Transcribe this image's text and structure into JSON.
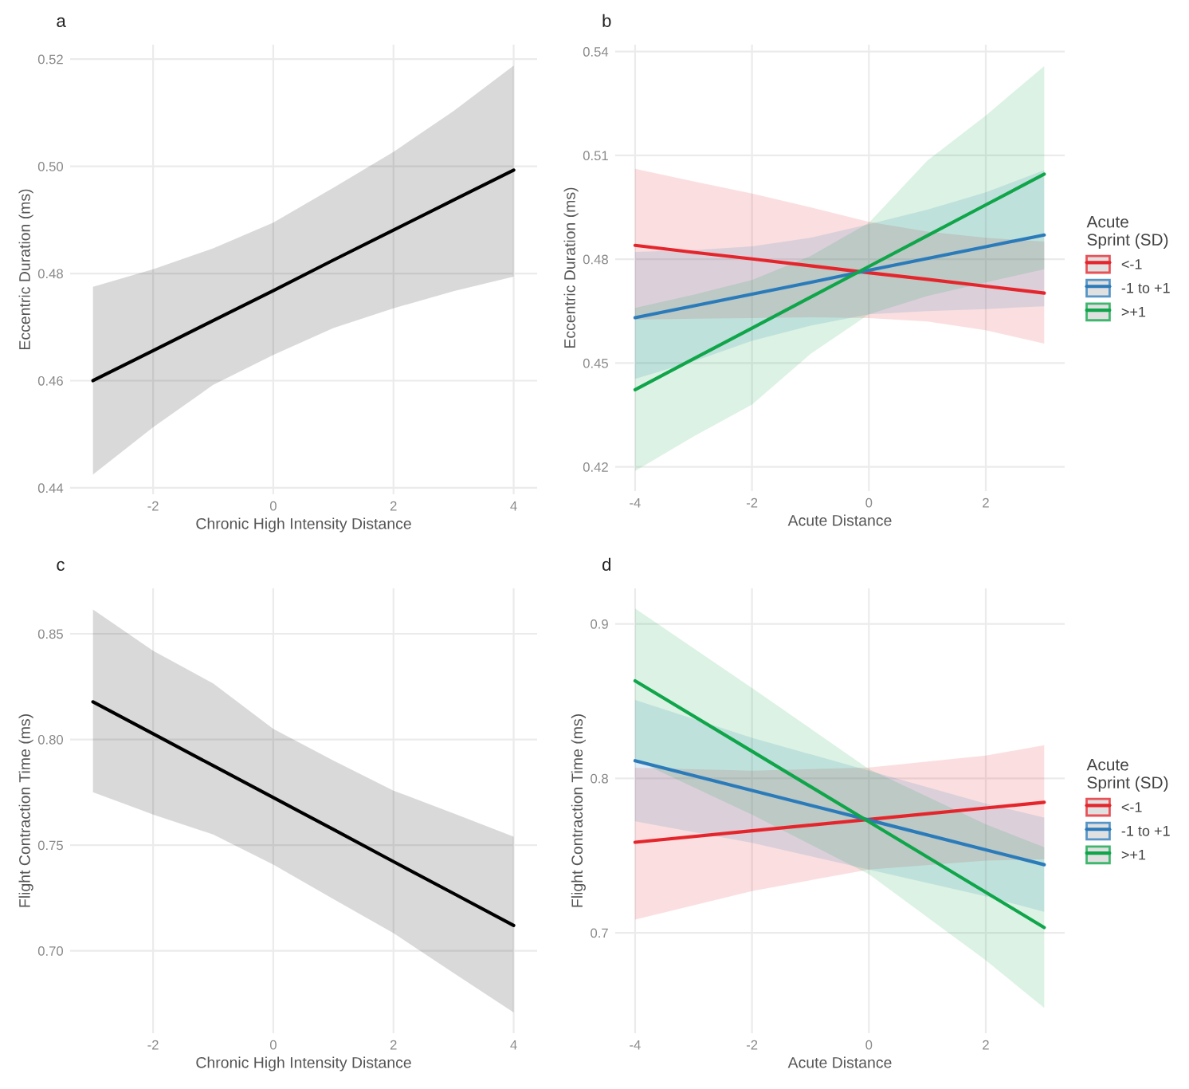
{
  "chart_data": [
    {
      "type": "line",
      "title": "a",
      "xlabel": "Chronic High Intensity Distance",
      "ylabel": "Eccentric Duration (ms)",
      "xlim": [
        -3.38,
        4.39
      ],
      "ylim": [
        0.4388,
        0.5227
      ],
      "xticks": [
        -2,
        0,
        2,
        4
      ],
      "yticks": [
        {
          "value": 0.44,
          "label": "0.44"
        },
        {
          "value": 0.46,
          "label": "0.46"
        },
        {
          "value": 0.48,
          "label": "0.48"
        },
        {
          "value": 0.5,
          "label": "0.50"
        },
        {
          "value": 0.52,
          "label": "0.52"
        }
      ],
      "grid": true,
      "legend": false,
      "x": [
        -3,
        -2,
        -1,
        0,
        1,
        2,
        3,
        4
      ],
      "series": [
        {
          "color": "#000000",
          "values": [
            0.46,
            0.4656,
            0.4712,
            0.4768,
            0.4825,
            0.4881,
            0.4937,
            0.4993
          ],
          "lower": [
            0.4425,
            0.4513,
            0.4592,
            0.4648,
            0.4698,
            0.4735,
            0.4767,
            0.4794
          ],
          "upper": [
            0.4775,
            0.4808,
            0.4847,
            0.4895,
            0.496,
            0.5027,
            0.5103,
            0.5188
          ]
        }
      ]
    },
    {
      "type": "line",
      "title": "b",
      "xlabel": "Acute Distance",
      "ylabel": "Eccentric Duration (ms)",
      "legend_title": "Acute\nSprint (SD)",
      "xlim": [
        -4.34,
        3.35
      ],
      "ylim": [
        0.413,
        0.542
      ],
      "xticks": [
        -4,
        -2,
        0,
        2
      ],
      "yticks": [
        0.42,
        0.45,
        0.48,
        0.51,
        0.54
      ],
      "grid": true,
      "legend": "right",
      "x": [
        -4,
        -3,
        -2,
        -1,
        0,
        1,
        2,
        3
      ],
      "series": [
        {
          "name": "<-1",
          "color": "#e4262c",
          "values": [
            0.484,
            0.482,
            0.4801,
            0.4781,
            0.4761,
            0.4742,
            0.4722,
            0.4702
          ],
          "lower": [
            0.4625,
            0.4628,
            0.463,
            0.4632,
            0.463,
            0.462,
            0.4595,
            0.4556
          ],
          "upper": [
            0.5061,
            0.5025,
            0.499,
            0.495,
            0.4908,
            0.488,
            0.4862,
            0.4851
          ]
        },
        {
          "name": "-1 to +1",
          "color": "#2b7bba",
          "values": [
            0.4631,
            0.4665,
            0.4699,
            0.4733,
            0.4768,
            0.4802,
            0.4836,
            0.487
          ],
          "lower": [
            0.4454,
            0.4505,
            0.4564,
            0.4608,
            0.4641,
            0.465,
            0.4656,
            0.4664
          ],
          "upper": [
            0.4821,
            0.4826,
            0.4837,
            0.4862,
            0.4901,
            0.4943,
            0.4993,
            0.5057
          ]
        },
        {
          "name": ">+1",
          "color": "#10a54a",
          "values": [
            0.4423,
            0.4512,
            0.4601,
            0.469,
            0.4779,
            0.4868,
            0.4957,
            0.5046
          ],
          "lower": [
            0.4188,
            0.4288,
            0.438,
            0.4526,
            0.4641,
            0.4694,
            0.4733,
            0.4771
          ],
          "upper": [
            0.4659,
            0.4697,
            0.474,
            0.4809,
            0.4905,
            0.5085,
            0.5215,
            0.5358
          ]
        }
      ]
    },
    {
      "type": "line",
      "title": "c",
      "xlabel": "Chronic High Intensity Distance",
      "ylabel": "Flight Contraction Time (ms)",
      "xlim": [
        -3.38,
        4.39
      ],
      "ylim": [
        0.661,
        0.8715
      ],
      "xticks": [
        -2,
        0,
        2,
        4
      ],
      "yticks": [
        {
          "value": 0.7,
          "label": "0.70"
        },
        {
          "value": 0.75,
          "label": "0.75"
        },
        {
          "value": 0.8,
          "label": "0.80"
        },
        {
          "value": 0.85,
          "label": "0.85"
        }
      ],
      "grid": true,
      "legend": false,
      "x": [
        -3,
        -2,
        -1,
        0,
        1,
        2,
        3,
        4
      ],
      "series": [
        {
          "color": "#000000",
          "values": [
            0.8178,
            0.8027,
            0.7876,
            0.7725,
            0.7574,
            0.7422,
            0.7271,
            0.712
          ],
          "lower": [
            0.775,
            0.7645,
            0.755,
            0.7408,
            0.7245,
            0.7083,
            0.6895,
            0.6708
          ],
          "upper": [
            0.8615,
            0.842,
            0.8265,
            0.805,
            0.79,
            0.7758,
            0.765,
            0.754
          ]
        }
      ]
    },
    {
      "type": "line",
      "title": "d",
      "xlabel": "Acute Distance",
      "ylabel": "Flight Contraction Time (ms)",
      "legend_title": "Acute\nSprint (SD)",
      "xlim": [
        -4.34,
        3.35
      ],
      "ylim": [
        0.635,
        0.923
      ],
      "xticks": [
        -4,
        -2,
        0,
        2
      ],
      "yticks": [
        {
          "value": 0.7,
          "label": "0.7"
        },
        {
          "value": 0.8,
          "label": "0.8"
        },
        {
          "value": 0.9,
          "label": "0.9"
        }
      ],
      "grid": true,
      "legend": "right",
      "x": [
        -4,
        -2,
        0,
        2,
        3
      ],
      "series": [
        {
          "name": "<-1",
          "color": "#e4262c",
          "values": [
            0.7586,
            0.766,
            0.7734,
            0.7808,
            0.7845
          ],
          "lower": [
            0.7086,
            0.727,
            0.741,
            0.7468,
            0.7476
          ],
          "upper": [
            0.8069,
            0.805,
            0.807,
            0.8148,
            0.8214
          ]
        },
        {
          "name": "-1 to +1",
          "color": "#2b7bba",
          "values": [
            0.8114,
            0.7922,
            0.773,
            0.7537,
            0.7441
          ],
          "lower": [
            0.7721,
            0.7582,
            0.741,
            0.7237,
            0.7136
          ],
          "upper": [
            0.8507,
            0.8262,
            0.805,
            0.7837,
            0.7746
          ]
        },
        {
          "name": ">+1",
          "color": "#10a54a",
          "values": [
            0.8631,
            0.8175,
            0.7719,
            0.7262,
            0.7034
          ],
          "lower": [
            0.812,
            0.7765,
            0.738,
            0.6822,
            0.6514
          ],
          "upper": [
            0.91,
            0.8585,
            0.806,
            0.7702,
            0.7554
          ]
        }
      ]
    }
  ]
}
